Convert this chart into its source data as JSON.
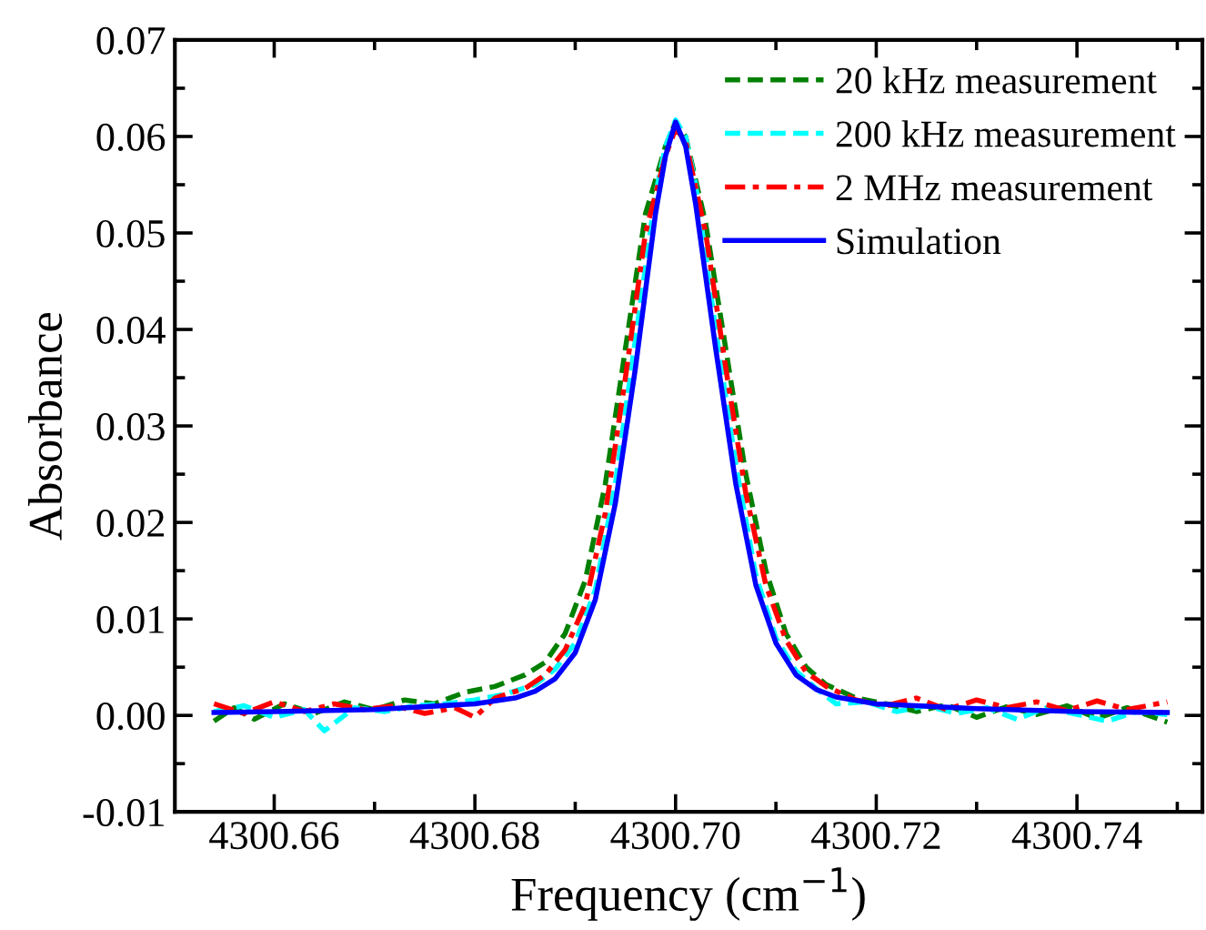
{
  "chart_data": {
    "type": "line",
    "xlabel": "Frequency (cm$^{−1}$)",
    "ylabel": "Absorbance",
    "xlim": [
      4300.6501,
      4300.7525
    ],
    "ylim": [
      -0.01,
      0.07
    ],
    "xticks": [
      {
        "value": 4300.66,
        "label": "4300.66"
      },
      {
        "value": 4300.68,
        "label": "4300.68"
      },
      {
        "value": 4300.7,
        "label": "4300.70"
      },
      {
        "value": 4300.72,
        "label": "4300.72"
      },
      {
        "value": 4300.74,
        "label": "4300.74"
      }
    ],
    "yticks": [
      {
        "value": -0.01,
        "label": "-0.01"
      },
      {
        "value": 0.0,
        "label": "0.00"
      },
      {
        "value": 0.01,
        "label": "0.01"
      },
      {
        "value": 0.02,
        "label": "0.02"
      },
      {
        "value": 0.03,
        "label": "0.03"
      },
      {
        "value": 0.04,
        "label": "0.04"
      },
      {
        "value": 0.05,
        "label": "0.05"
      },
      {
        "value": 0.06,
        "label": "0.06"
      },
      {
        "value": 0.07,
        "label": "0.07"
      }
    ],
    "grid": false,
    "legend": "top right",
    "series": [
      {
        "name": "20 kHz measurement",
        "color": "#008000",
        "line_style": "dashed",
        "x": [
          4300.654,
          4300.656,
          4300.658,
          4300.661,
          4300.664,
          4300.667,
          4300.67,
          4300.673,
          4300.676,
          4300.679,
          4300.682,
          4300.685,
          4300.687,
          4300.689,
          4300.691,
          4300.693,
          4300.695,
          4300.697,
          4300.699,
          4300.7,
          4300.701,
          4300.703,
          4300.705,
          4300.707,
          4300.709,
          4300.711,
          4300.713,
          4300.715,
          4300.718,
          4300.721,
          4300.724,
          4300.727,
          4300.73,
          4300.733,
          4300.736,
          4300.739,
          4300.742,
          4300.745,
          4300.749
        ],
        "values": [
          -0.0006,
          0.0008,
          -0.0004,
          0.0012,
          0.0002,
          0.0014,
          0.0006,
          0.0016,
          0.0012,
          0.0024,
          0.003,
          0.0042,
          0.0055,
          0.0085,
          0.014,
          0.024,
          0.038,
          0.052,
          0.059,
          0.0615,
          0.06,
          0.051,
          0.038,
          0.025,
          0.015,
          0.0085,
          0.005,
          0.0032,
          0.0018,
          0.0012,
          0.0004,
          0.0011,
          -0.0002,
          0.0009,
          0.0001,
          0.001,
          -0.0003,
          0.0008,
          -0.0007
        ]
      },
      {
        "name": "200 kHz measurement",
        "color": "#00ffff",
        "line_style": "dashed",
        "x": [
          4300.654,
          4300.657,
          4300.66,
          4300.663,
          4300.665,
          4300.668,
          4300.671,
          4300.674,
          4300.677,
          4300.68,
          4300.683,
          4300.686,
          4300.688,
          4300.69,
          4300.692,
          4300.694,
          4300.696,
          4300.698,
          4300.699,
          4300.7,
          4300.701,
          4300.702,
          4300.704,
          4300.706,
          4300.708,
          4300.71,
          4300.712,
          4300.714,
          4300.716,
          4300.719,
          4300.722,
          4300.725,
          4300.728,
          4300.731,
          4300.734,
          4300.737,
          4300.74,
          4300.743,
          4300.746,
          4300.749
        ],
        "values": [
          0.0004,
          0.001,
          -0.0002,
          0.0006,
          -0.0016,
          0.0008,
          0.0004,
          0.001,
          0.0012,
          0.0016,
          0.0022,
          0.0032,
          0.0048,
          0.0075,
          0.013,
          0.024,
          0.039,
          0.054,
          0.059,
          0.0617,
          0.06,
          0.055,
          0.04,
          0.026,
          0.0145,
          0.008,
          0.0046,
          0.0028,
          0.0012,
          0.0014,
          0.0004,
          0.001,
          0.0002,
          0.0008,
          -0.0004,
          0.0008,
          0.0001,
          -0.0006,
          0.0004,
          0.0001
        ]
      },
      {
        "name": "2 MHz measurement",
        "color": "#ff0000",
        "line_style": "dashdot",
        "x": [
          4300.654,
          4300.657,
          4300.66,
          4300.663,
          4300.666,
          4300.669,
          4300.672,
          4300.675,
          4300.678,
          4300.68,
          4300.682,
          4300.685,
          4300.687,
          4300.689,
          4300.691,
          4300.693,
          4300.695,
          4300.697,
          4300.699,
          4300.7,
          4300.701,
          4300.703,
          4300.705,
          4300.707,
          4300.709,
          4300.711,
          4300.713,
          4300.715,
          4300.718,
          4300.721,
          4300.724,
          4300.727,
          4300.73,
          4300.733,
          4300.736,
          4300.739,
          4300.742,
          4300.745,
          4300.749
        ],
        "values": [
          0.0012,
          0.0002,
          0.0014,
          0.0004,
          0.0012,
          0.0006,
          0.001,
          0.0002,
          0.0008,
          -0.0002,
          0.0018,
          0.0028,
          0.0042,
          0.0068,
          0.0115,
          0.021,
          0.035,
          0.05,
          0.058,
          0.0608,
          0.0595,
          0.05,
          0.036,
          0.023,
          0.0135,
          0.0078,
          0.0045,
          0.003,
          0.0016,
          0.001,
          0.0018,
          0.0006,
          0.0016,
          0.0008,
          0.0014,
          0.0005,
          0.0015,
          0.0006,
          0.0014
        ]
      },
      {
        "name": "Simulation",
        "color": "#0000ff",
        "line_style": "solid",
        "x": [
          4300.654,
          4300.66,
          4300.67,
          4300.68,
          4300.684,
          4300.686,
          4300.688,
          4300.69,
          4300.692,
          4300.694,
          4300.696,
          4300.698,
          4300.699,
          4300.7,
          4300.701,
          4300.702,
          4300.704,
          4300.706,
          4300.708,
          4300.71,
          4300.712,
          4300.714,
          4300.716,
          4300.72,
          4300.73,
          4300.74,
          4300.749
        ],
        "values": [
          0.0003,
          0.0004,
          0.0006,
          0.0012,
          0.0018,
          0.0025,
          0.0038,
          0.0065,
          0.012,
          0.022,
          0.036,
          0.052,
          0.058,
          0.0615,
          0.059,
          0.053,
          0.038,
          0.024,
          0.0135,
          0.0075,
          0.0042,
          0.0027,
          0.0019,
          0.0012,
          0.0007,
          0.0004,
          0.0003
        ]
      }
    ]
  }
}
